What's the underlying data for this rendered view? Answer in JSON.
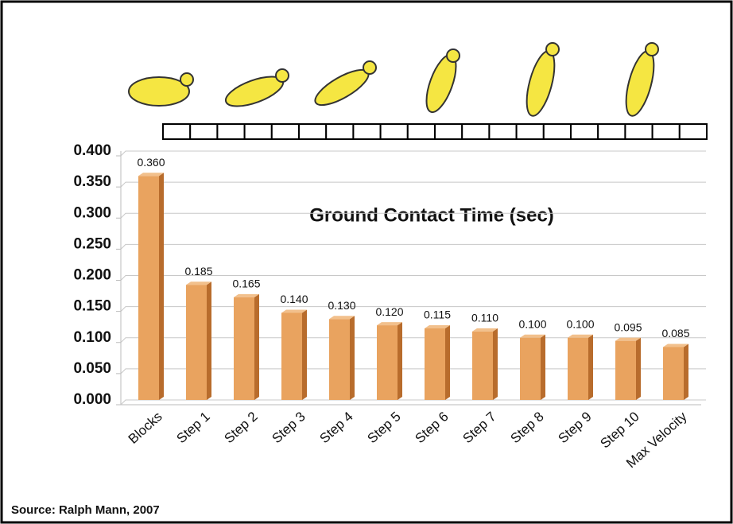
{
  "chart_data": {
    "type": "bar",
    "title": "Ground Contact Time (sec)",
    "source": "Source:  Ralph Mann, 2007",
    "categories": [
      "Blocks",
      "Step 1",
      "Step 2",
      "Step 3",
      "Step 4",
      "Step 5",
      "Step 6",
      "Step 7",
      "Step 8",
      "Step 9",
      "Step 10",
      "Max Velocity"
    ],
    "values": [
      0.36,
      0.185,
      0.165,
      0.14,
      0.13,
      0.12,
      0.115,
      0.11,
      0.1,
      0.1,
      0.095,
      0.085
    ],
    "value_labels": [
      "0.360",
      "0.185",
      "0.165",
      "0.140",
      "0.130",
      "0.120",
      "0.115",
      "0.110",
      "0.100",
      "0.100",
      "0.095",
      "0.085"
    ],
    "color": "#e9a35f",
    "ylim": [
      0,
      0.4
    ],
    "yticks": [
      {
        "value": 0,
        "label": "0.000"
      },
      {
        "value": 0.05,
        "label": "0.050"
      },
      {
        "value": 0.1,
        "label": "0.100"
      },
      {
        "value": 0.15,
        "label": "0.150"
      },
      {
        "value": 0.2,
        "label": "0.200"
      },
      {
        "value": 0.25,
        "label": "0.250"
      },
      {
        "value": 0.3,
        "label": "0.300"
      },
      {
        "value": 0.35,
        "label": "0.350"
      },
      {
        "value": 0.4,
        "label": "0.400"
      }
    ],
    "grid": true
  }
}
